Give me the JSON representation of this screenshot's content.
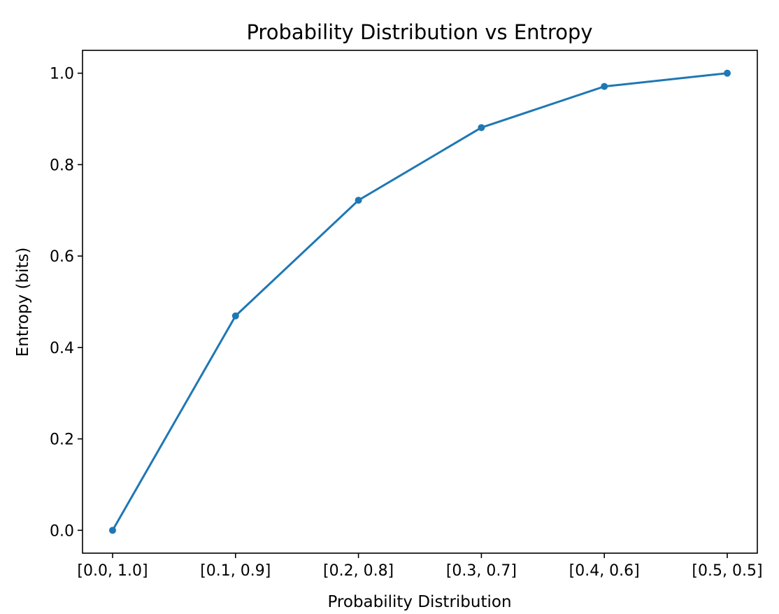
{
  "chart_data": {
    "type": "line",
    "title": "Probability Distribution vs Entropy",
    "xlabel": "Probability Distribution",
    "ylabel": "Entropy (bits)",
    "categories": [
      "[0.0, 1.0]",
      "[0.1, 0.9]",
      "[0.2, 0.8]",
      "[0.3, 0.7]",
      "[0.4, 0.6]",
      "[0.5, 0.5]"
    ],
    "series": [
      {
        "values": [
          0.0,
          0.469,
          0.722,
          0.881,
          0.971,
          1.0
        ],
        "color": "#1f77b4",
        "marker": "circle"
      }
    ],
    "yticks": [
      "0.0",
      "0.2",
      "0.4",
      "0.6",
      "0.8",
      "1.0"
    ],
    "ylim": [
      -0.05,
      1.05
    ],
    "grid": false,
    "legend": "none"
  }
}
